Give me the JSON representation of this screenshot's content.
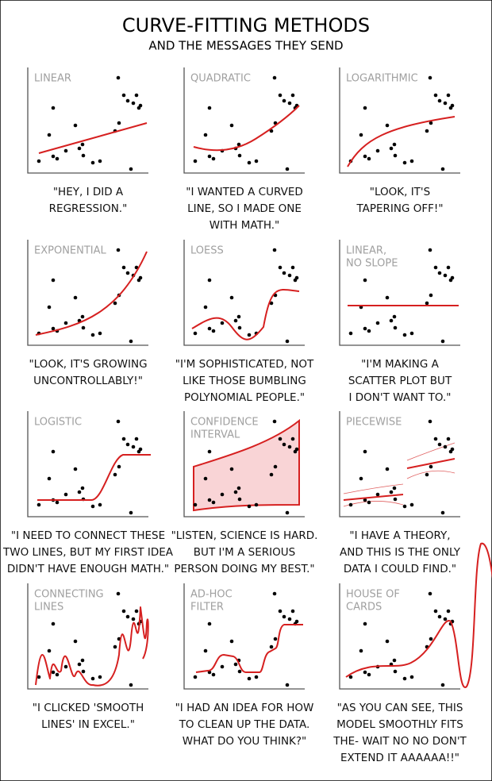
{
  "header": {
    "title": "CURVE-FITTING METHODS",
    "subtitle": "AND THE MESSAGES THEY SEND"
  },
  "panels": [
    {
      "label": [
        "LINEAR"
      ],
      "caption": [
        "\"HEY, I DID A",
        "REGRESSION.\""
      ]
    },
    {
      "label": [
        "QUADRATIC"
      ],
      "caption": [
        "\"I WANTED A CURVED",
        "LINE, SO I MADE ONE",
        "WITH MATH.\""
      ]
    },
    {
      "label": [
        "LOGARITHMIC"
      ],
      "caption": [
        "\"LOOK, IT'S",
        "TAPERING OFF!\""
      ]
    },
    {
      "label": [
        "EXPONENTIAL"
      ],
      "caption": [
        "\"LOOK, IT'S GROWING",
        "UNCONTROLLABLY!\""
      ]
    },
    {
      "label": [
        "LOESS"
      ],
      "caption": [
        "\"I'M SOPHISTICATED, NOT",
        "LIKE THOSE BUMBLING",
        "POLYNOMIAL PEOPLE.\""
      ]
    },
    {
      "label": [
        "LINEAR,",
        "NO SLOPE"
      ],
      "caption": [
        "\"I'M MAKING A",
        "SCATTER PLOT BUT",
        "I DON'T WANT TO.\""
      ]
    },
    {
      "label": [
        "LOGISTIC"
      ],
      "caption": [
        "\"I NEED TO CONNECT THESE",
        "TWO LINES, BUT MY FIRST IDEA",
        "DIDN'T HAVE ENOUGH MATH.\""
      ]
    },
    {
      "label": [
        "CONFIDENCE",
        "INTERVAL"
      ],
      "caption": [
        "\"LISTEN, SCIENCE IS HARD.",
        "BUT I'M A SERIOUS",
        "PERSON DOING MY BEST.\""
      ]
    },
    {
      "label": [
        "PIECEWISE"
      ],
      "caption": [
        "\"I HAVE A THEORY,",
        "AND THIS IS THE ONLY",
        "DATA I COULD FIND.\""
      ]
    },
    {
      "label": [
        "CONNECTING",
        "LINES"
      ],
      "caption": [
        "\"I CLICKED 'SMOOTH",
        "LINES' IN EXCEL.\""
      ]
    },
    {
      "label": [
        "AD-HOC",
        "FILTER"
      ],
      "caption": [
        "\"I HAD AN IDEA FOR HOW",
        "TO CLEAN UP THE DATA.",
        "WHAT DO YOU THINK?\""
      ]
    },
    {
      "label": [
        "HOUSE OF",
        "CARDS"
      ],
      "caption": [
        "\"AS YOU CAN SEE, THIS",
        "MODEL SMOOTHLY FITS",
        "THE- WAIT NO NO DON'T",
        "EXTEND IT AAAAAA!!\""
      ]
    }
  ]
}
